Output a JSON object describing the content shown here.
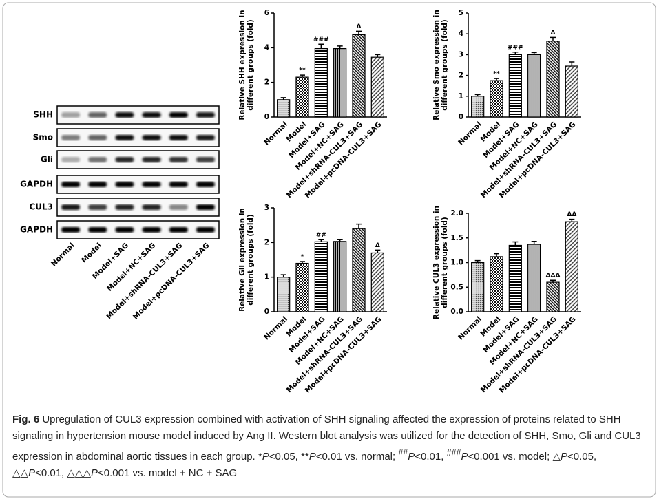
{
  "blot": {
    "rows": [
      "SHH",
      "Smo",
      "Gli",
      "GAPDH",
      "CUL3",
      "GAPDH"
    ],
    "lanes": [
      "Normal",
      "Model",
      "Model+SAG",
      "Model+NC+SAG",
      "Model+shRNA-CUL3+SAG",
      "Model+pcDNA-CUL3+SAG"
    ]
  },
  "chart_data": [
    {
      "type": "bar",
      "ylabel": [
        "Relative SHH expression in",
        "different groups (fold)"
      ],
      "categories": [
        "Normal",
        "Model",
        "Model+SAG",
        "Model+NC+SAG",
        "Model+shRNA-CUL3+SAG",
        "Model+pcDNA-CUL3+SAG"
      ],
      "values": [
        1.0,
        2.3,
        3.95,
        3.95,
        4.75,
        3.45
      ],
      "errors": [
        0.12,
        0.12,
        0.25,
        0.15,
        0.2,
        0.15
      ],
      "annotations": [
        null,
        "**",
        "###",
        null,
        "Δ",
        null
      ],
      "ylim": [
        0,
        6
      ],
      "yticks": [
        0,
        2,
        4,
        6
      ]
    },
    {
      "type": "bar",
      "ylabel": [
        "Relative Smo expression in",
        "different groups (fold)"
      ],
      "categories": [
        "Normal",
        "Model",
        "Model+SAG",
        "Model+NC+SAG",
        "Model+shRNA-CUL3+SAG",
        "Model+pcDNA-CUL3+SAG"
      ],
      "values": [
        1.0,
        1.75,
        3.0,
        3.0,
        3.65,
        2.45
      ],
      "errors": [
        0.08,
        0.1,
        0.12,
        0.1,
        0.18,
        0.2
      ],
      "annotations": [
        null,
        "**",
        "###",
        null,
        "Δ",
        null
      ],
      "ylim": [
        0,
        5
      ],
      "yticks": [
        0,
        1,
        2,
        3,
        4,
        5
      ]
    },
    {
      "type": "bar",
      "ylabel": [
        "Relative Gli expression in",
        "different groups (fold)"
      ],
      "categories": [
        "Normal",
        "Model",
        "Model+SAG",
        "Model+NC+SAG",
        "Model+shRNA-CUL3+SAG",
        "Model+pcDNA-CUL3+SAG"
      ],
      "values": [
        1.0,
        1.4,
        2.02,
        2.03,
        2.4,
        1.7
      ],
      "errors": [
        0.07,
        0.05,
        0.06,
        0.05,
        0.13,
        0.08
      ],
      "annotations": [
        null,
        "*",
        "##",
        null,
        null,
        "Δ"
      ],
      "ylim": [
        0,
        3
      ],
      "yticks": [
        0,
        1,
        2,
        3
      ]
    },
    {
      "type": "bar",
      "ylabel": [
        "Relative CUL3 expression in",
        "different groups (fold)"
      ],
      "categories": [
        "Normal",
        "Model",
        "Model+SAG",
        "Model+NC+SAG",
        "Model+shRNA-CUL3+SAG",
        "Model+pcDNA-CUL3+SAG"
      ],
      "values": [
        1.0,
        1.12,
        1.35,
        1.37,
        0.6,
        1.83
      ],
      "errors": [
        0.04,
        0.06,
        0.07,
        0.06,
        0.04,
        0.05
      ],
      "annotations": [
        null,
        null,
        null,
        null,
        "ΔΔΔ",
        "ΔΔ"
      ],
      "ylim": [
        0,
        2
      ],
      "yticks": [
        {
          "value": 0,
          "label": "0.0"
        },
        {
          "value": 0.5,
          "label": "0.5"
        },
        {
          "value": 1,
          "label": "1.0"
        },
        {
          "value": 1.5,
          "label": "1.5"
        },
        {
          "value": 2,
          "label": "2.0"
        }
      ]
    }
  ],
  "caption": {
    "label": "Fig. 6",
    "segments": [
      " Upregulation of CUL3 expression combined with activation of SHH signaling affected the expression of proteins related to SHH signaling in hypertension mouse model induced by Ang II. Western blot analysis was utilized for the detection of SHH, Smo, Gli and CUL3 expression in abdominal aortic tissues in each group. *",
      "P",
      "<0.05, **",
      "P",
      "<0.01 vs. normal; ",
      "##",
      "P",
      "<0.01, ",
      "###",
      "P",
      "<0.001 vs. model; △",
      "P",
      "<0.05, △△",
      "P",
      "<0.01, △△△",
      "P",
      "<0.001 vs. model + NC + SAG"
    ]
  }
}
